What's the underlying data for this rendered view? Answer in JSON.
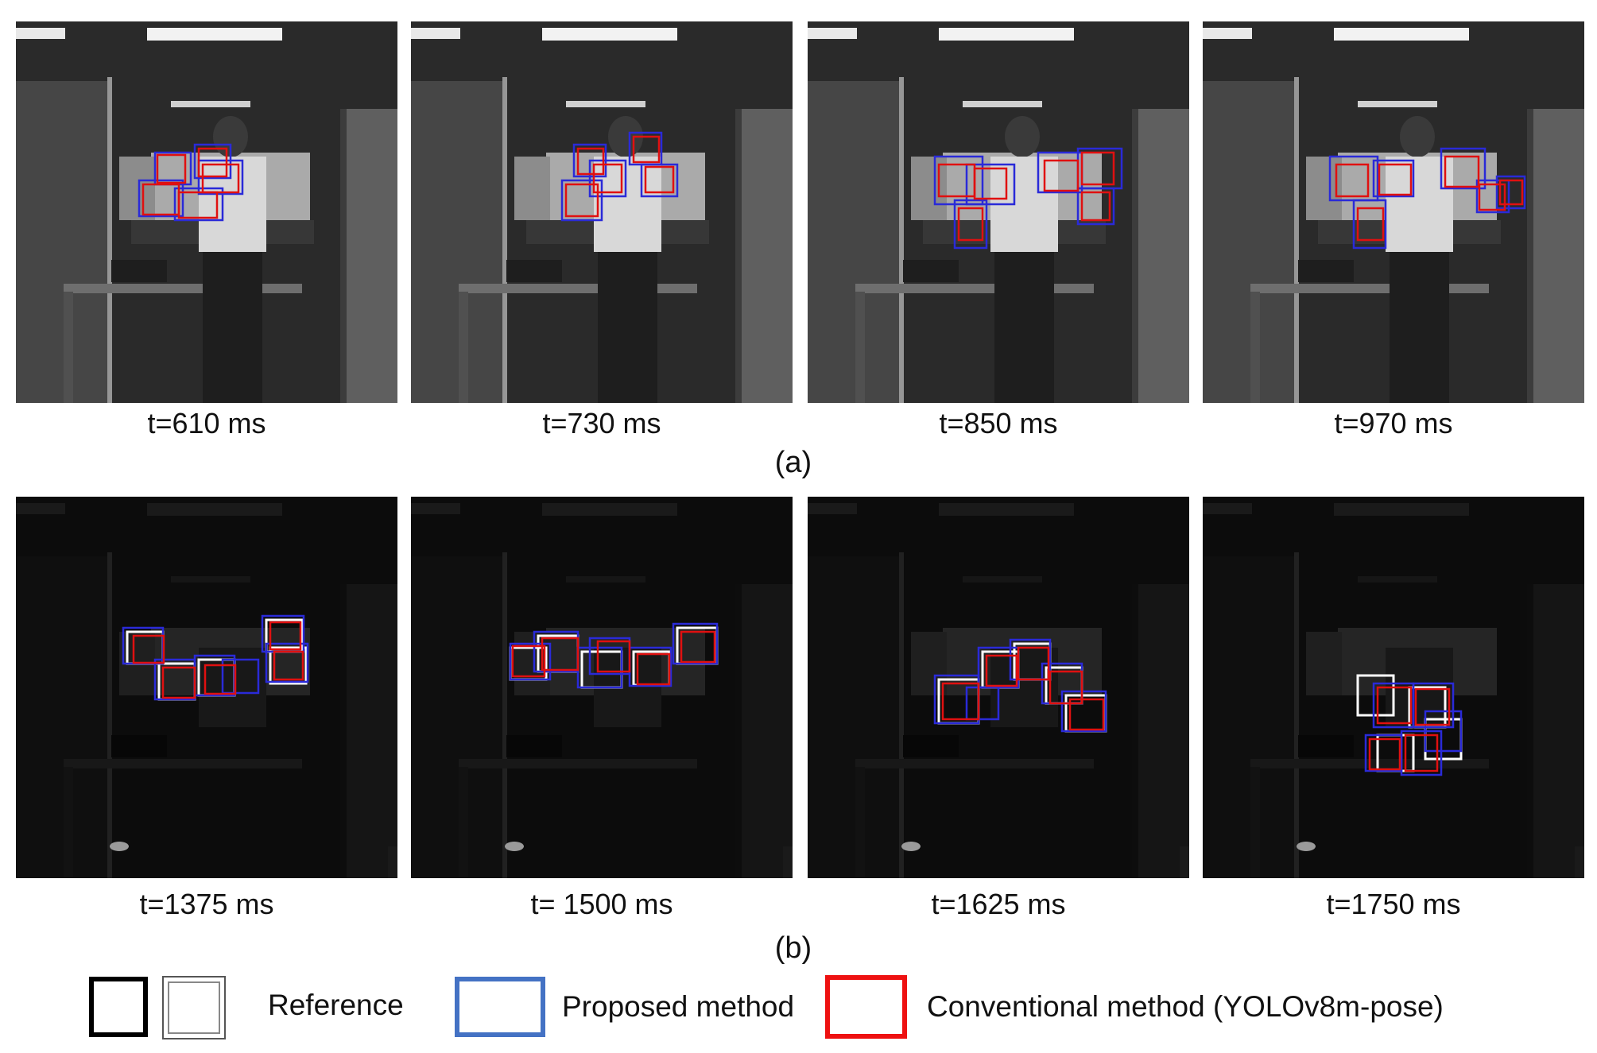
{
  "row_a": {
    "label": "(a)",
    "frames": [
      {
        "caption": "t=610 ms"
      },
      {
        "caption": "t=730 ms"
      },
      {
        "caption": "t=850 ms"
      },
      {
        "caption": "t=970 ms"
      }
    ]
  },
  "row_b": {
    "label": "(b)",
    "frames": [
      {
        "caption": "t=1375 ms"
      },
      {
        "caption": "t= 1500 ms"
      },
      {
        "caption": "t=1625 ms"
      },
      {
        "caption": "t=1750 ms"
      }
    ]
  },
  "legend": {
    "reference": "Reference",
    "proposed": "Proposed method",
    "conventional": "Conventional method (YOLOv8m-pose)"
  },
  "colors": {
    "reference_dark": "#000000",
    "reference_light": "#ffffff",
    "proposed": "#2a2ad8",
    "conventional": "#e01010",
    "legend_proposed": "#4472c4",
    "legend_conventional": "#ee1111"
  }
}
